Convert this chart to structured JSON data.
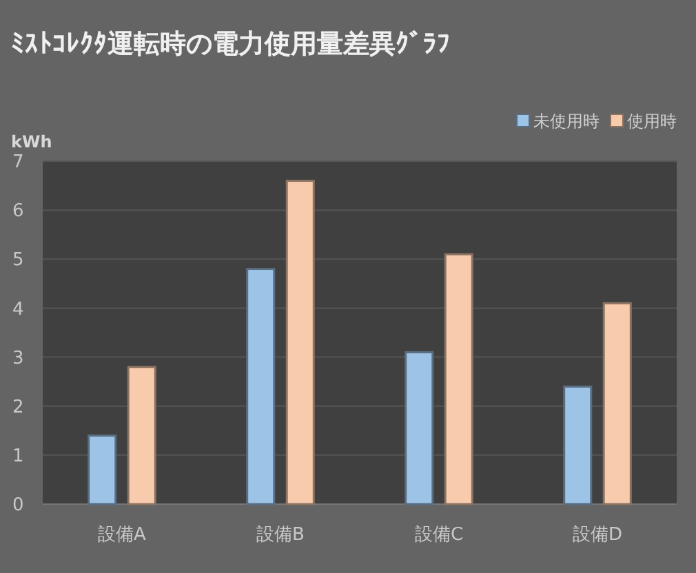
{
  "chart_data": {
    "type": "bar",
    "title": "ﾐｽﾄｺﾚｸﾀ運転時の電力使用量差異ｸﾞﾗﾌ",
    "ylabel": "kWh",
    "categories": [
      "設備A",
      "設備B",
      "設備C",
      "設備D"
    ],
    "series": [
      {
        "name": "未使用時",
        "color": "#9dc3e6",
        "values": [
          1.4,
          4.8,
          3.1,
          2.4
        ]
      },
      {
        "name": "使用時",
        "color": "#f8cbad",
        "values": [
          2.8,
          6.6,
          5.1,
          4.1
        ]
      }
    ],
    "ylim": [
      0,
      7
    ],
    "yticks": [
      0,
      1,
      2,
      3,
      4,
      5,
      6,
      7
    ],
    "grid": "y",
    "legend": "top right"
  }
}
